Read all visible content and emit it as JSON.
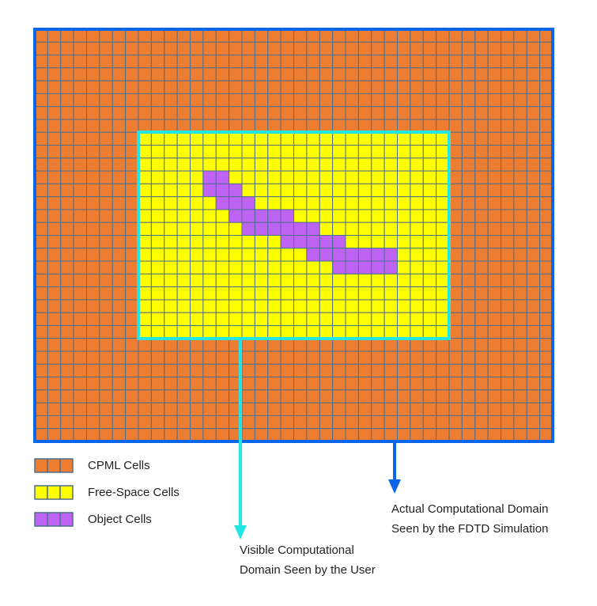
{
  "legend": [
    {
      "label": "CPML Cells"
    },
    {
      "label": "Free-Space Cells"
    },
    {
      "label": "Object Cells"
    }
  ],
  "annotations": {
    "actual": [
      "Actual Computational Domain",
      "Seen by the FDTD Simulation"
    ],
    "visible": [
      "Visible Computational",
      "Domain Seen by the User"
    ]
  }
}
